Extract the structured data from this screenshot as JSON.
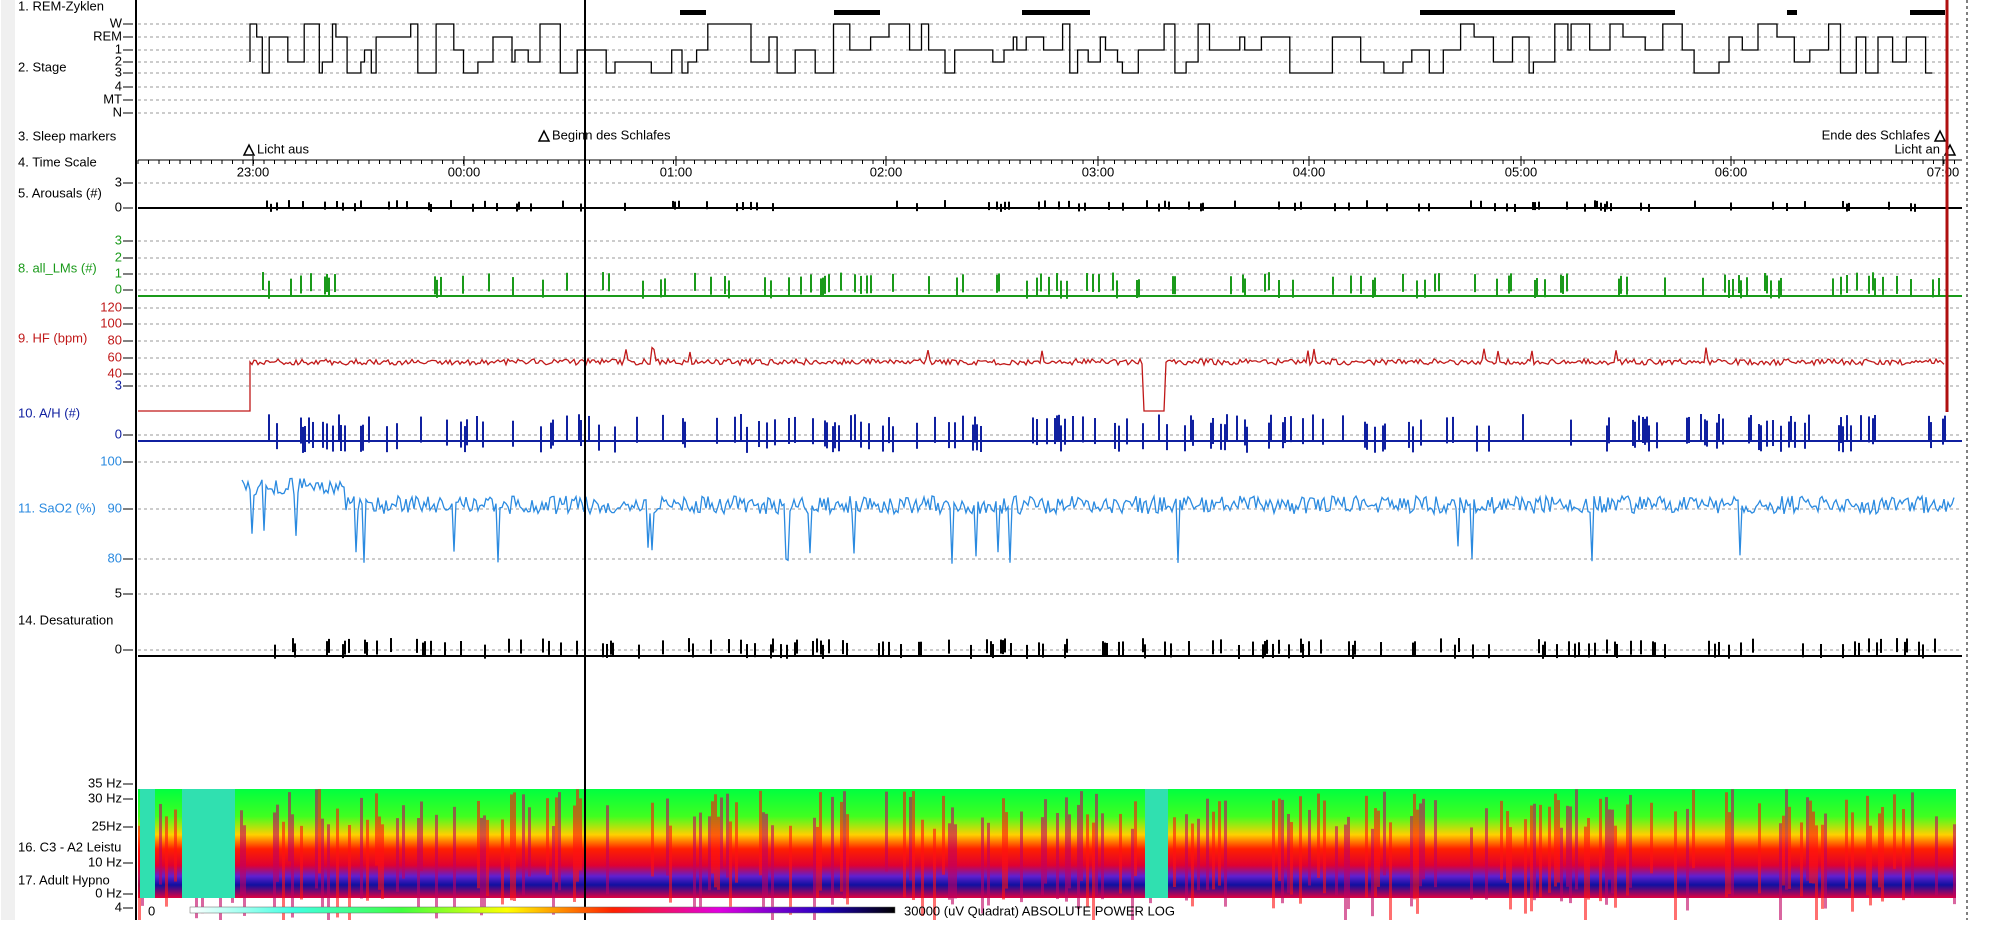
{
  "channels": [
    {
      "label": "1. REM-Zyklen",
      "ticks": []
    },
    {
      "label": "2. Stage",
      "ticks": [
        "W",
        "REM",
        "1",
        "2",
        "3",
        "4",
        "MT",
        "N"
      ]
    },
    {
      "label": "3. Sleep markers",
      "ticks": []
    },
    {
      "label": "4. Time Scale",
      "ticks": []
    },
    {
      "label": "5. Arousals (#)",
      "ticks": [
        "3",
        "0"
      ]
    },
    {
      "label": "8. all_LMs (#)",
      "ticks": [
        "3",
        "2",
        "1",
        "0"
      ]
    },
    {
      "label": "9. HF (bpm)",
      "ticks": [
        "120",
        "100",
        "80",
        "60",
        "40"
      ]
    },
    {
      "label": "10. A/H (#)",
      "ticks": [
        "3",
        "0"
      ]
    },
    {
      "label": "11. SaO2 (%)",
      "ticks": [
        "100",
        "90",
        "80"
      ]
    },
    {
      "label": "14. Desaturation",
      "ticks": [
        "5",
        "0"
      ]
    },
    {
      "label": "16. C3 - A2 Leistu",
      "ticks": [
        "35 Hz",
        "30 Hz",
        "25Hz",
        "10 Hz",
        "0 Hz",
        "4"
      ]
    },
    {
      "label": "17. Adult Hypno",
      "ticks": []
    }
  ],
  "markers": [
    "Licht aus",
    "Beginn des Schlafes",
    "Ende des Schlafes",
    "Licht an"
  ],
  "times": [
    "23:00",
    "00:00",
    "01:00",
    "02:00",
    "03:00",
    "04:00",
    "05:00",
    "06:00",
    "07:00"
  ],
  "colorbar": {
    "min": "0",
    "max": "30000 (uV Quadrat)   ABSOLUTE   POWER   LOG"
  }
}
